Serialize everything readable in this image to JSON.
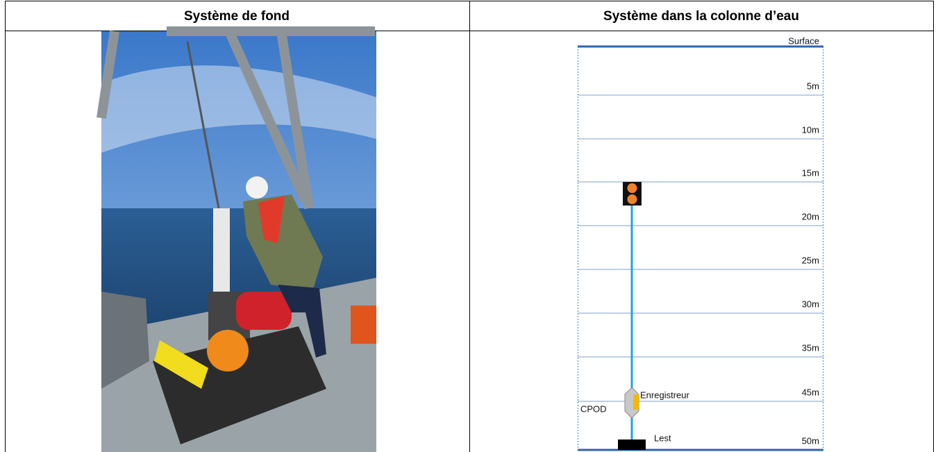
{
  "table": {
    "headers": [
      "Système de fond",
      "Système dans la colonne d’eau"
    ]
  },
  "diagram": {
    "levels": [
      "Surface",
      "5m",
      "10m",
      "15m",
      "20m",
      "25m",
      "30m",
      "35m",
      "45m",
      "50m"
    ],
    "annotations": {
      "recorder": "Enregistreur",
      "cpod": "CPOD",
      "weight": "Lest"
    }
  }
}
